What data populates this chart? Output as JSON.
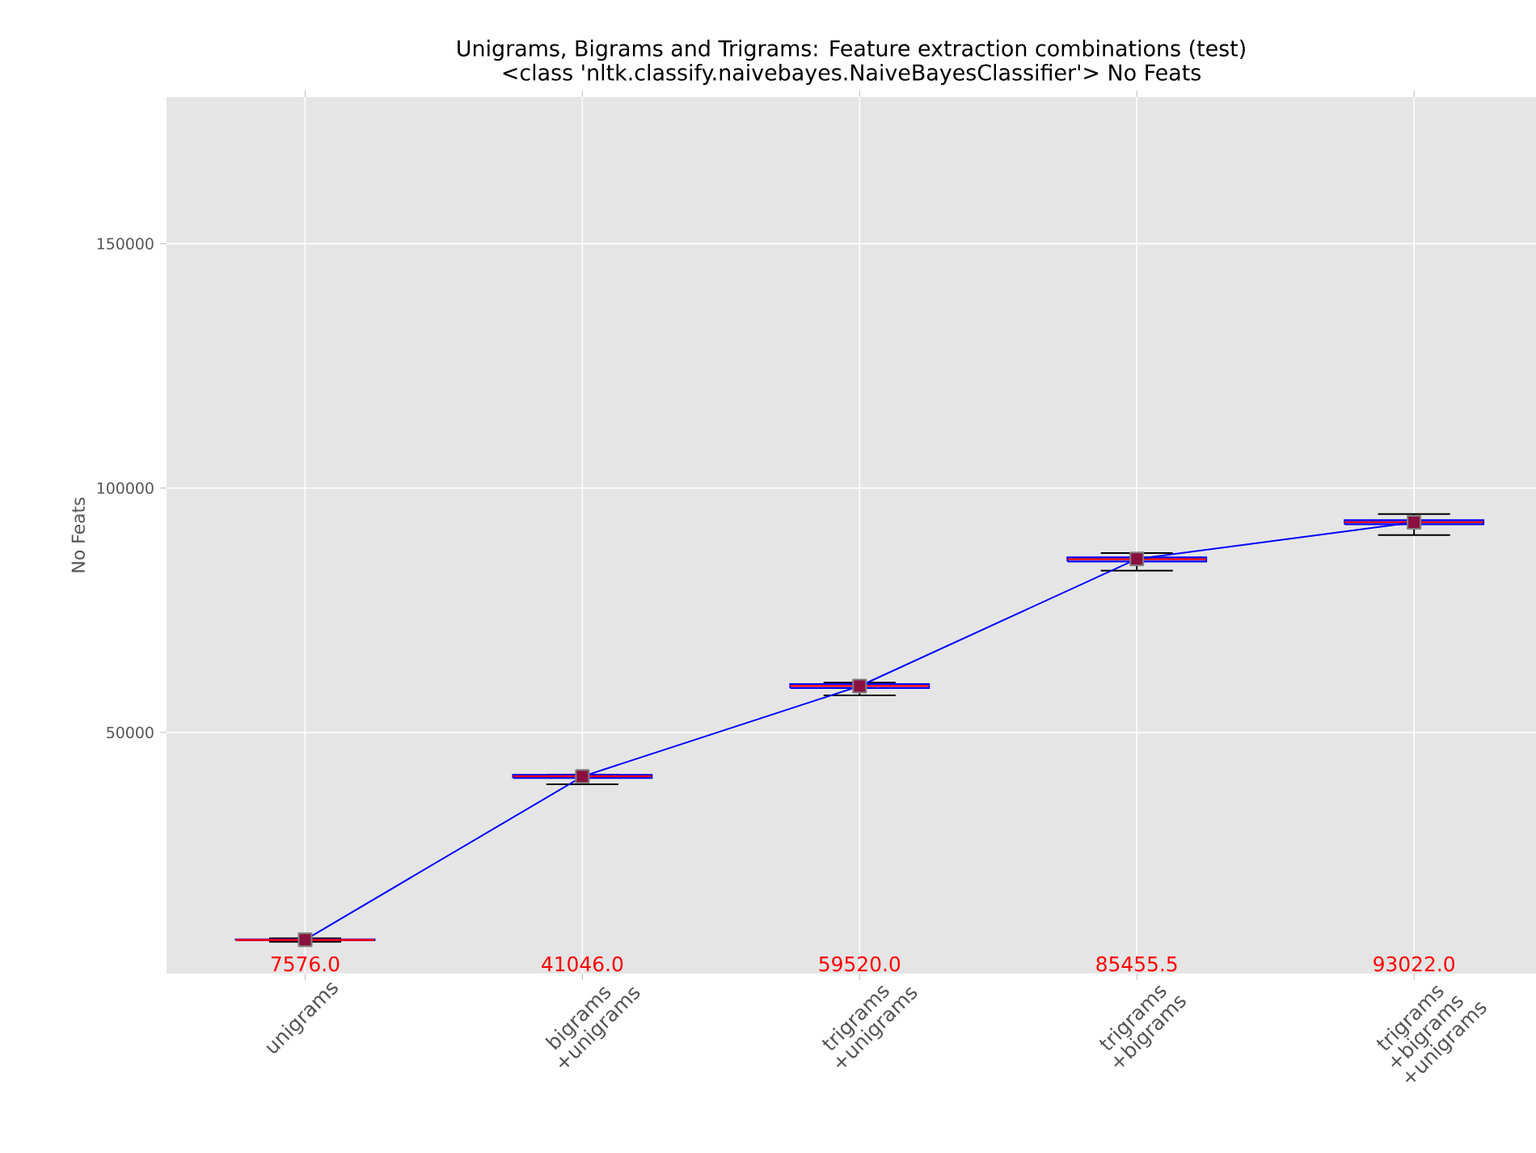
{
  "chart_data": {
    "type": "box",
    "title": "Unigrams, Bigrams and Trigrams: Feature extraction combinations (test)",
    "subtitle": "<class 'nltk.classify.naivebayes.NaiveBayesClassifier'> No Feats",
    "ylabel": "No Feats",
    "categories": [
      "unigrams",
      "bigrams +unigrams",
      "trigrams +unigrams",
      "trigrams +bigrams",
      "trigrams +bigrams +unigrams"
    ],
    "series": [
      {
        "color": "#0000ff",
        "boxes": [
          {
            "low": 7200,
            "q1": 7500,
            "median": 7576.0,
            "q3": 7650,
            "high": 7900
          },
          {
            "low": 39400,
            "q1": 40700,
            "median": 41046.0,
            "q3": 41300,
            "high": 41400
          },
          {
            "low": 57600,
            "q1": 59100,
            "median": 59520.0,
            "q3": 59900,
            "high": 60200
          },
          {
            "low": 83100,
            "q1": 85000,
            "median": 85455.5,
            "q3": 85800,
            "high": 86700
          },
          {
            "low": 90400,
            "q1": 92600,
            "median": 93022.0,
            "q3": 93400,
            "high": 94700
          }
        ]
      },
      {
        "type": "line",
        "color": "#0000ff",
        "values": [
          7600,
          41000,
          59500,
          85500,
          93000
        ]
      }
    ],
    "ylim": [
      700,
      180000
    ],
    "yticks": [
      50000,
      100000,
      150000
    ],
    "annotations": [
      "7576.0",
      "41046.0",
      "59520.0",
      "85455.5",
      "93022.0"
    ],
    "marker": "square",
    "grid": true
  }
}
